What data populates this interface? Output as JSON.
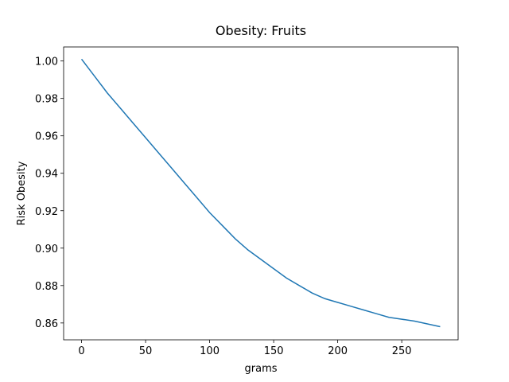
{
  "chart_data": {
    "type": "line",
    "title": "Obesity: Fruits",
    "x_label": "grams",
    "y_label": "Risk Obesity",
    "x": [
      0,
      10,
      20,
      30,
      40,
      50,
      60,
      70,
      80,
      90,
      100,
      110,
      120,
      130,
      140,
      150,
      160,
      170,
      180,
      190,
      200,
      210,
      220,
      230,
      240,
      250,
      260,
      270,
      280
    ],
    "series": [
      {
        "color": "#1f77b4",
        "values": [
          1.001,
          0.992,
          0.983,
          0.975,
          0.967,
          0.959,
          0.951,
          0.943,
          0.935,
          0.927,
          0.919,
          0.912,
          0.905,
          0.899,
          0.894,
          0.889,
          0.884,
          0.88,
          0.876,
          0.873,
          0.871,
          0.869,
          0.867,
          0.865,
          0.863,
          0.862,
          0.861,
          0.8595,
          0.858
        ]
      }
    ],
    "xlim": [
      -14,
      294
    ],
    "ylim": [
      0.851,
      1.0075
    ],
    "xticks": [
      0,
      50,
      100,
      150,
      200,
      250
    ],
    "yticks": [
      {
        "value": 0.86,
        "label": "0.86"
      },
      {
        "value": 0.88,
        "label": "0.88"
      },
      {
        "value": 0.9,
        "label": "0.90"
      },
      {
        "value": 0.92,
        "label": "0.92"
      },
      {
        "value": 0.94,
        "label": "0.94"
      },
      {
        "value": 0.96,
        "label": "0.96"
      },
      {
        "value": 0.98,
        "label": "0.98"
      },
      {
        "value": 1.0,
        "label": "1.00"
      }
    ],
    "grid": false
  }
}
